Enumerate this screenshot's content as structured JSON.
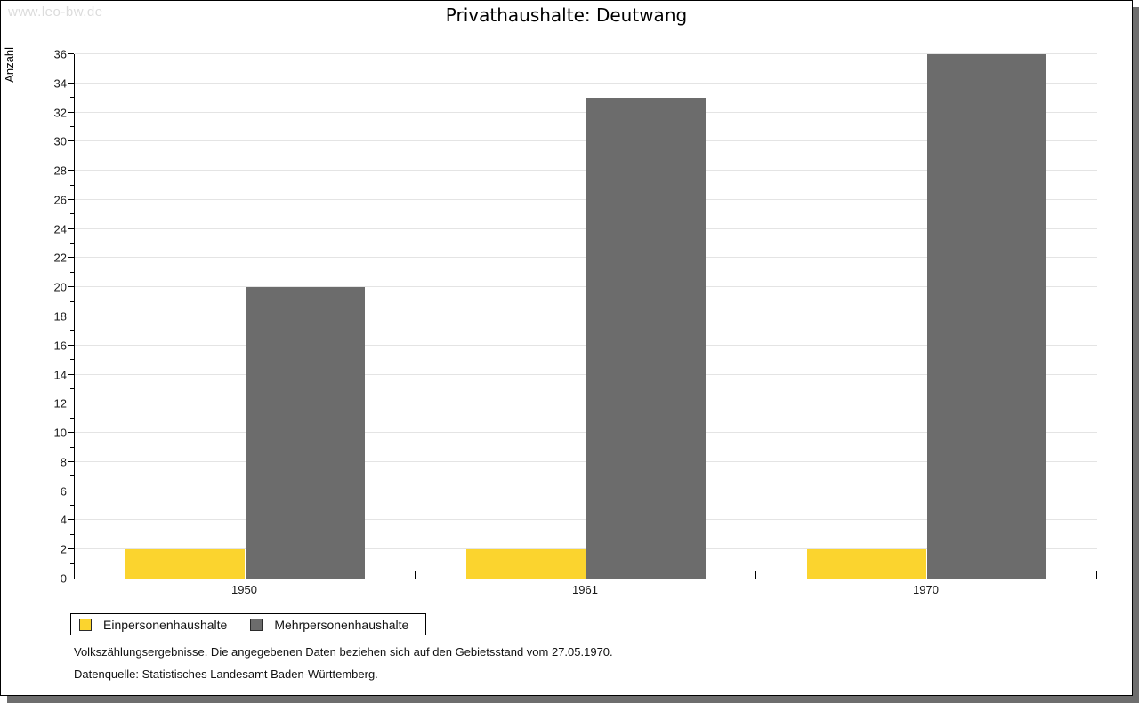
{
  "watermark": "www.leo-bw.de",
  "header": {
    "title": "Privathaushalte: Deutwang"
  },
  "chart_data": {
    "type": "bar",
    "title": "Privathaushalte: Deutwang",
    "categories": [
      "1950",
      "1961",
      "1970"
    ],
    "series": [
      {
        "name": "Einpersonenhaushalte",
        "color": "#FBD42E",
        "values": [
          2,
          2,
          2
        ]
      },
      {
        "name": "Mehrpersonenhaushalte",
        "color": "#6C6C6C",
        "values": [
          20,
          33,
          36
        ]
      }
    ],
    "xlabel": "",
    "ylabel": "Anzahl",
    "ylim": [
      0,
      36
    ],
    "ytick_step": 2,
    "grid": true,
    "legend_position": "bottom-left"
  },
  "footnotes": {
    "line1": "Volkszählungsergebnisse. Die angegebenen Daten beziehen sich auf den Gebietsstand vom 27.05.1970.",
    "line2": "Datenquelle: Statistisches Landesamt Baden-Württemberg."
  }
}
